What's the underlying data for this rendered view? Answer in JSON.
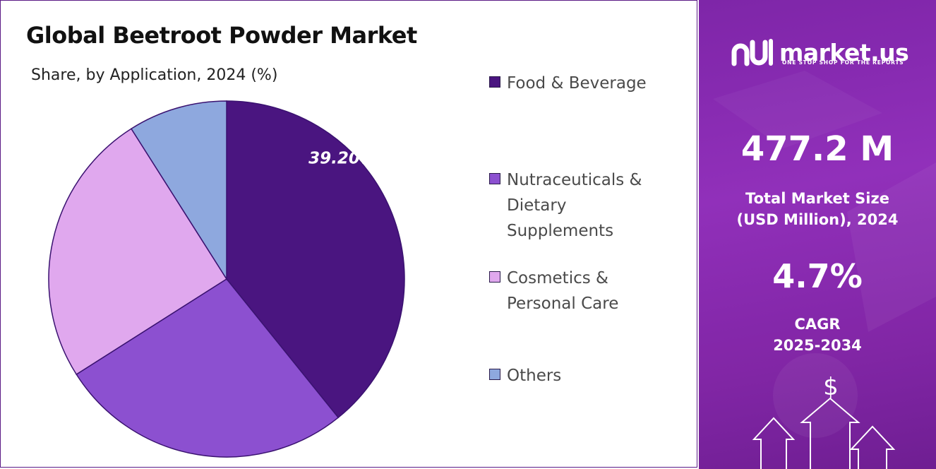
{
  "chart_data": {
    "type": "pie",
    "title": "Global Beetroot Powder Market",
    "subtitle": "Share, by Application, 2024 (%)",
    "categories": [
      "Food & Beverage",
      "Nutraceuticals & Dietary Supplements",
      "Cosmetics & Personal Care",
      "Others"
    ],
    "values": [
      39.2,
      26.8,
      25.0,
      9.0
    ],
    "colors": [
      "#4a1580",
      "#8c50d0",
      "#e0a8ee",
      "#8ea8de"
    ],
    "data_labels": [
      "39.20%",
      "",
      "",
      ""
    ],
    "legend_position": "right"
  },
  "legend": [
    {
      "lines": [
        "Food & Beverage"
      ],
      "color": "#4a1580"
    },
    {
      "lines": [
        "Nutraceuticals &",
        "Dietary",
        "Supplements"
      ],
      "color": "#8c50d0"
    },
    {
      "lines": [
        "Cosmetics &",
        "Personal Care"
      ],
      "color": "#e0a8ee"
    },
    {
      "lines": [
        "Others"
      ],
      "color": "#8ea8de"
    }
  ],
  "sidebar": {
    "logo_text": "market.us",
    "logo_tagline": "ONE STOP SHOP FOR THE REPORTS",
    "market_size_value": "477.2 M",
    "market_size_label_1": "Total Market Size",
    "market_size_label_2": "(USD Million), 2024",
    "cagr_value": "4.7%",
    "cagr_label_1": "CAGR",
    "cagr_label_2": "2025-2034",
    "dollar_symbol": "$",
    "icons": [
      "market-us-logo-icon",
      "dollar-icon",
      "arrow-up-icon"
    ]
  }
}
